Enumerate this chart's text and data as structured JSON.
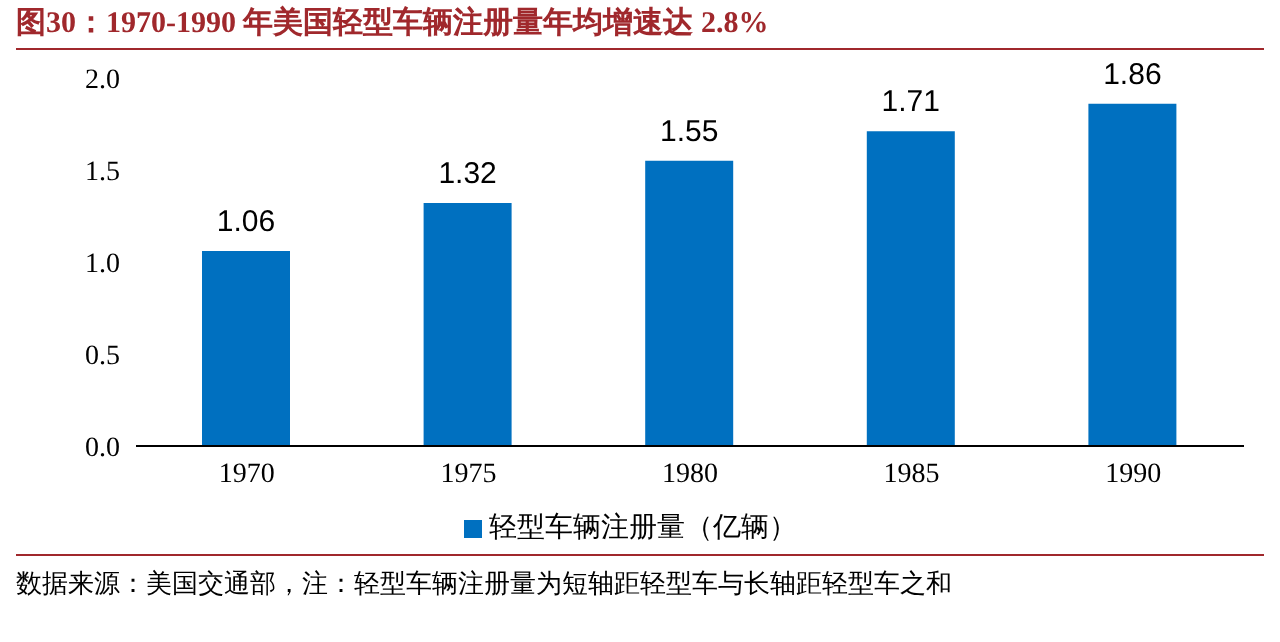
{
  "chart_data": {
    "type": "bar",
    "title": "图30：1970-1990 年美国轻型车辆注册量年均增速达 2.8%",
    "categories": [
      "1970",
      "1975",
      "1980",
      "1985",
      "1990"
    ],
    "series": [
      {
        "name": "轻型车辆注册量（亿辆）",
        "color": "#0070c0",
        "values": [
          1.06,
          1.32,
          1.55,
          1.71,
          1.86
        ]
      }
    ],
    "ylim": [
      0,
      2
    ],
    "yticks": [
      {
        "value": 0,
        "label": "0.0"
      },
      {
        "value": 0.5,
        "label": "0.5"
      },
      {
        "value": 1,
        "label": "1.0"
      },
      {
        "value": 1.5,
        "label": "1.5"
      },
      {
        "value": 2,
        "label": "2.0"
      }
    ],
    "data_labels": true,
    "grid": false,
    "legend": "bottom",
    "annotations": [
      "数据来源：美国交通部，注：轻型车辆注册量为短轴距轻型车与长轴距轻型车之和"
    ]
  }
}
